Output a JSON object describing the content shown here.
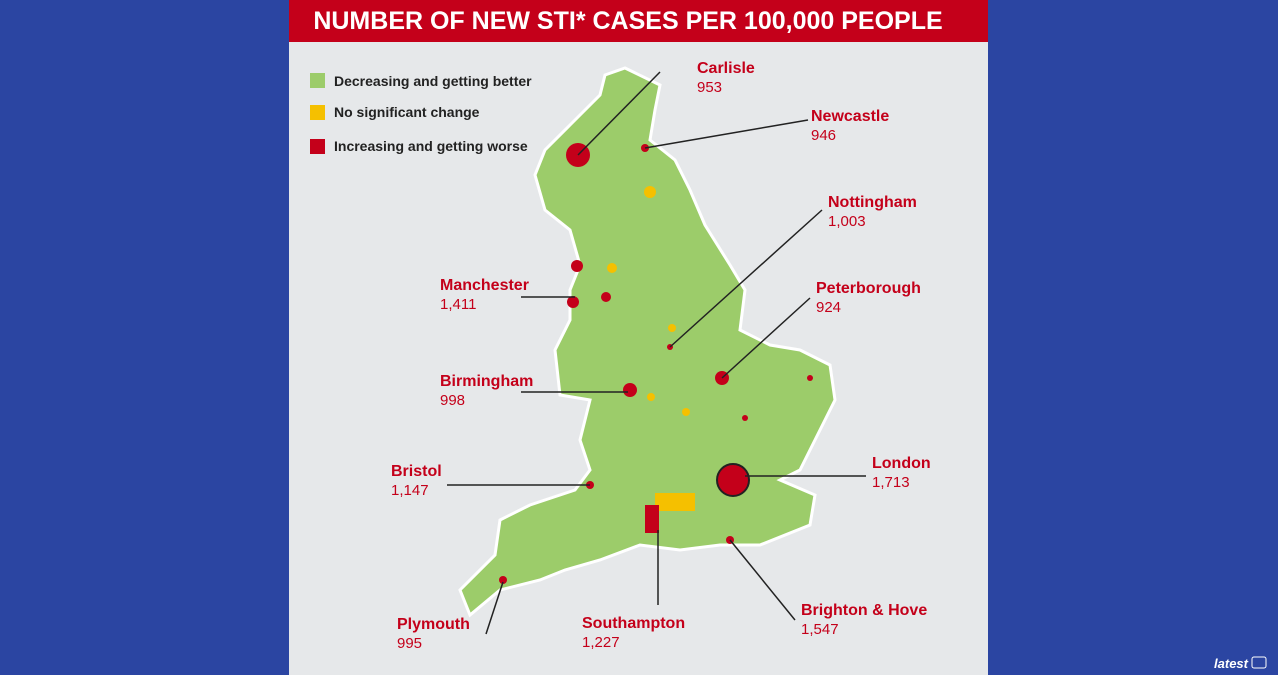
{
  "header": {
    "title": "NUMBER OF NEW STI* CASES PER 100,000 PEOPLE"
  },
  "legend": [
    {
      "label": "Decreasing and getting better"
    },
    {
      "label": "No significant change"
    },
    {
      "label": "Increasing and getting worse"
    }
  ],
  "cities": [
    {
      "name": "Carlisle",
      "value": "953"
    },
    {
      "name": "Newcastle",
      "value": "946"
    },
    {
      "name": "Nottingham",
      "value": "1,003"
    },
    {
      "name": "Manchester",
      "value": "1,411"
    },
    {
      "name": "Peterborough",
      "value": "924"
    },
    {
      "name": "Birmingham",
      "value": "998"
    },
    {
      "name": "Bristol",
      "value": "1,147"
    },
    {
      "name": "London",
      "value": "1,713"
    },
    {
      "name": "Plymouth",
      "value": "995"
    },
    {
      "name": "Southampton",
      "value": "1,227"
    },
    {
      "name": "Brighton & Hove",
      "value": "1,547"
    }
  ],
  "watermark": "latest"
}
